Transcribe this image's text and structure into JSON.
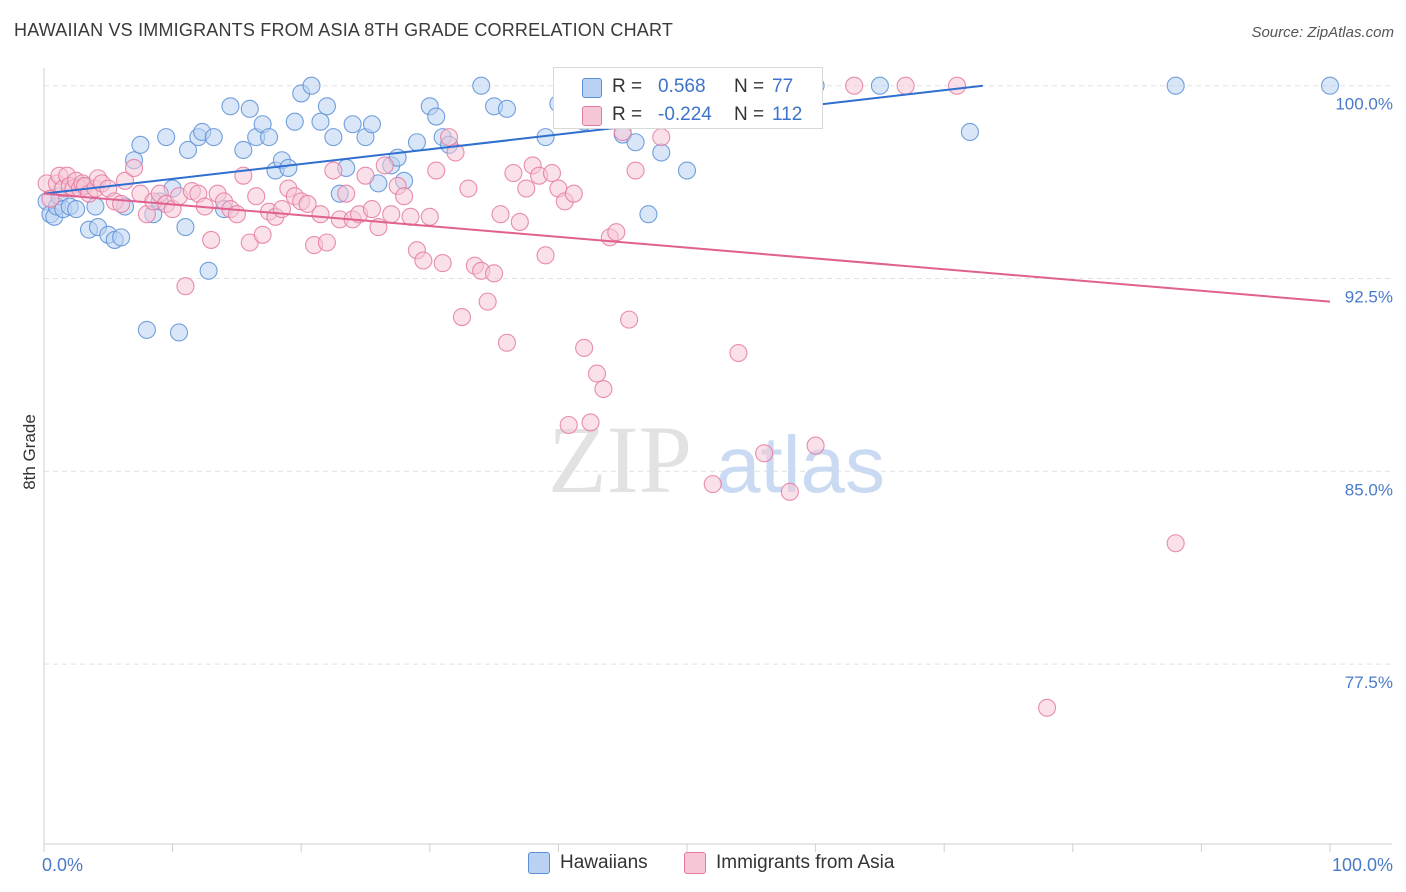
{
  "title": "HAWAIIAN VS IMMIGRANTS FROM ASIA 8TH GRADE CORRELATION CHART",
  "source": "Source: ZipAtlas.com",
  "colors": {
    "blue": "#5b8fd6",
    "blue_fill": "#b9d1f2",
    "blue_line": "#2f6fd0",
    "pink": "#e57aa0",
    "pink_fill": "#f6c6d6",
    "pink_line": "#e0608f",
    "axis_label": "#4a7bc8",
    "grid": "#e1e1e1"
  },
  "legend": {
    "series": [
      {
        "r_label": "R =",
        "r_value": "0.568",
        "n_label": "N =",
        "n_value": "77"
      },
      {
        "r_label": "R =",
        "r_value": "-0.224",
        "n_label": "N =",
        "n_value": "112"
      }
    ],
    "bottom": [
      "Hawaiians",
      "Immigrants from Asia"
    ]
  },
  "watermark": {
    "zip": "ZIP",
    "atlas": "atlas"
  },
  "chart_data": {
    "type": "scatter",
    "title": "HAWAIIAN VS IMMIGRANTS FROM ASIA 8TH GRADE CORRELATION CHART",
    "xlabel": "",
    "ylabel": "8th Grade",
    "xlim": [
      0,
      100
    ],
    "ylim": [
      70.5,
      101
    ],
    "x_tick_labels": [
      "0.0%",
      "100.0%"
    ],
    "y_tick_labels": [
      "100.0%",
      "92.5%",
      "85.0%",
      "77.5%"
    ],
    "y_ticks": [
      100.0,
      92.5,
      85.0,
      77.5
    ],
    "grid": true,
    "legend_position": "top-center",
    "series": [
      {
        "name": "Hawaiians",
        "trend": {
          "x": [
            0,
            73
          ],
          "y": [
            95.8,
            100.0
          ]
        },
        "points": [
          [
            0.2,
            95.5
          ],
          [
            0.5,
            95.0
          ],
          [
            0.8,
            94.9
          ],
          [
            1.0,
            95.3
          ],
          [
            1.2,
            95.7
          ],
          [
            1.5,
            95.2
          ],
          [
            2.0,
            95.3
          ],
          [
            2.5,
            95.2
          ],
          [
            3.0,
            96.1
          ],
          [
            3.5,
            94.4
          ],
          [
            4.0,
            95.3
          ],
          [
            4.2,
            94.5
          ],
          [
            5.0,
            94.2
          ],
          [
            5.5,
            94.0
          ],
          [
            6.0,
            94.1
          ],
          [
            6.3,
            95.3
          ],
          [
            7.0,
            97.1
          ],
          [
            7.5,
            97.7
          ],
          [
            8.0,
            90.5
          ],
          [
            8.5,
            95.0
          ],
          [
            9.0,
            95.5
          ],
          [
            9.5,
            98.0
          ],
          [
            10.0,
            96.0
          ],
          [
            10.5,
            90.4
          ],
          [
            11.0,
            94.5
          ],
          [
            11.2,
            97.5
          ],
          [
            12.0,
            98.0
          ],
          [
            12.3,
            98.2
          ],
          [
            12.8,
            92.8
          ],
          [
            13.2,
            98.0
          ],
          [
            14.0,
            95.2
          ],
          [
            14.5,
            99.2
          ],
          [
            15.5,
            97.5
          ],
          [
            16.0,
            99.1
          ],
          [
            16.5,
            98.0
          ],
          [
            17.0,
            98.5
          ],
          [
            17.5,
            98.0
          ],
          [
            18.0,
            96.7
          ],
          [
            18.5,
            97.1
          ],
          [
            19.0,
            96.8
          ],
          [
            19.5,
            98.6
          ],
          [
            20.0,
            99.7
          ],
          [
            20.8,
            100.0
          ],
          [
            21.5,
            98.6
          ],
          [
            22.0,
            99.2
          ],
          [
            22.5,
            98.0
          ],
          [
            23.0,
            95.8
          ],
          [
            23.5,
            96.8
          ],
          [
            24.0,
            98.5
          ],
          [
            25.0,
            98.0
          ],
          [
            25.5,
            98.5
          ],
          [
            26.0,
            96.2
          ],
          [
            27.0,
            96.9
          ],
          [
            27.5,
            97.2
          ],
          [
            28.0,
            96.3
          ],
          [
            29.0,
            97.8
          ],
          [
            30.0,
            99.2
          ],
          [
            30.5,
            98.8
          ],
          [
            31.0,
            98.0
          ],
          [
            31.5,
            97.7
          ],
          [
            34.0,
            100.0
          ],
          [
            35.0,
            99.2
          ],
          [
            36.0,
            99.1
          ],
          [
            39.0,
            98.0
          ],
          [
            40.0,
            99.3
          ],
          [
            42.0,
            98.6
          ],
          [
            45.0,
            98.1
          ],
          [
            46.0,
            97.8
          ],
          [
            47.0,
            95.0
          ],
          [
            48.0,
            97.4
          ],
          [
            50.0,
            96.7
          ],
          [
            54.0,
            100.0
          ],
          [
            60.0,
            100.0
          ],
          [
            65.0,
            100.0
          ],
          [
            72.0,
            98.2
          ],
          [
            88.0,
            100.0
          ],
          [
            100.0,
            100.0
          ]
        ]
      },
      {
        "name": "Immigrants from Asia",
        "trend": {
          "x": [
            0,
            100
          ],
          "y": [
            95.8,
            91.6
          ]
        },
        "points": [
          [
            0.2,
            96.2
          ],
          [
            0.5,
            95.6
          ],
          [
            1.0,
            96.2
          ],
          [
            1.2,
            96.5
          ],
          [
            1.5,
            96.0
          ],
          [
            1.8,
            96.5
          ],
          [
            2.0,
            96.1
          ],
          [
            2.3,
            96.0
          ],
          [
            2.5,
            96.3
          ],
          [
            2.8,
            96.0
          ],
          [
            3.0,
            96.2
          ],
          [
            3.2,
            96.1
          ],
          [
            3.5,
            95.8
          ],
          [
            4.0,
            96.0
          ],
          [
            4.2,
            96.4
          ],
          [
            4.5,
            96.2
          ],
          [
            5.0,
            96.0
          ],
          [
            5.5,
            95.5
          ],
          [
            6.0,
            95.4
          ],
          [
            6.3,
            96.3
          ],
          [
            7.0,
            96.8
          ],
          [
            7.5,
            95.8
          ],
          [
            8.0,
            95.0
          ],
          [
            8.5,
            95.5
          ],
          [
            9.0,
            95.8
          ],
          [
            9.5,
            95.4
          ],
          [
            10.0,
            95.2
          ],
          [
            10.5,
            95.7
          ],
          [
            11.0,
            92.2
          ],
          [
            11.5,
            95.9
          ],
          [
            12.0,
            95.8
          ],
          [
            12.5,
            95.3
          ],
          [
            13.0,
            94.0
          ],
          [
            13.5,
            95.8
          ],
          [
            14.0,
            95.5
          ],
          [
            14.5,
            95.2
          ],
          [
            15.0,
            95.0
          ],
          [
            15.5,
            96.5
          ],
          [
            16.0,
            93.9
          ],
          [
            16.5,
            95.7
          ],
          [
            17.0,
            94.2
          ],
          [
            17.5,
            95.1
          ],
          [
            18.0,
            94.9
          ],
          [
            18.5,
            95.2
          ],
          [
            19.0,
            96.0
          ],
          [
            19.5,
            95.7
          ],
          [
            20.0,
            95.5
          ],
          [
            20.5,
            95.4
          ],
          [
            21.0,
            93.8
          ],
          [
            21.5,
            95.0
          ],
          [
            22.0,
            93.9
          ],
          [
            22.5,
            96.7
          ],
          [
            23.0,
            94.8
          ],
          [
            23.5,
            95.8
          ],
          [
            24.0,
            94.8
          ],
          [
            24.5,
            95.0
          ],
          [
            25.0,
            96.5
          ],
          [
            25.5,
            95.2
          ],
          [
            26.0,
            94.5
          ],
          [
            26.5,
            96.9
          ],
          [
            27.0,
            95.0
          ],
          [
            27.5,
            96.1
          ],
          [
            28.0,
            95.7
          ],
          [
            28.5,
            94.9
          ],
          [
            29.0,
            93.6
          ],
          [
            29.5,
            93.2
          ],
          [
            30.0,
            94.9
          ],
          [
            30.5,
            96.7
          ],
          [
            31.0,
            93.1
          ],
          [
            31.5,
            98.0
          ],
          [
            32.0,
            97.4
          ],
          [
            32.5,
            91.0
          ],
          [
            33.0,
            96.0
          ],
          [
            33.5,
            93.0
          ],
          [
            34.0,
            92.8
          ],
          [
            34.5,
            91.6
          ],
          [
            35.0,
            92.7
          ],
          [
            35.5,
            95.0
          ],
          [
            36.0,
            90.0
          ],
          [
            36.5,
            96.6
          ],
          [
            37.0,
            94.7
          ],
          [
            37.5,
            96.0
          ],
          [
            38.0,
            96.9
          ],
          [
            38.5,
            96.5
          ],
          [
            39.0,
            93.4
          ],
          [
            39.5,
            96.6
          ],
          [
            40.0,
            96.0
          ],
          [
            40.5,
            95.5
          ],
          [
            40.8,
            86.8
          ],
          [
            41.2,
            95.8
          ],
          [
            42.0,
            89.8
          ],
          [
            42.5,
            86.9
          ],
          [
            43.0,
            88.8
          ],
          [
            43.5,
            88.2
          ],
          [
            44.0,
            94.1
          ],
          [
            44.5,
            94.3
          ],
          [
            45.0,
            98.2
          ],
          [
            45.5,
            90.9
          ],
          [
            46.0,
            96.7
          ],
          [
            47.0,
            99.3
          ],
          [
            48.0,
            98.0
          ],
          [
            52.0,
            84.5
          ],
          [
            53.0,
            100.0
          ],
          [
            54.0,
            89.6
          ],
          [
            56.0,
            85.7
          ],
          [
            58.0,
            84.2
          ],
          [
            60.0,
            86.0
          ],
          [
            63.0,
            100.0
          ],
          [
            67.0,
            100.0
          ],
          [
            71.0,
            100.0
          ],
          [
            78.0,
            75.8
          ],
          [
            88.0,
            82.2
          ]
        ]
      }
    ]
  }
}
